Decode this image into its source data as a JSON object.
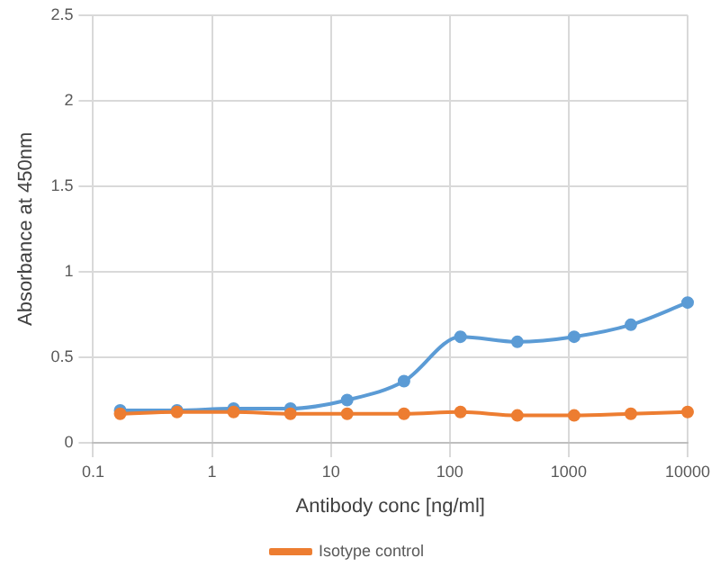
{
  "chart_data": {
    "type": "line",
    "xlabel": "Antibody conc [ng/ml]",
    "ylabel": "Absorbance at 450nm",
    "x": [
      0.169,
      0.508,
      1.52,
      4.57,
      13.7,
      41.2,
      123,
      370,
      1111,
      3333,
      10000
    ],
    "series": [
      {
        "color": "#5b9bd5",
        "values": [
          0.19,
          0.19,
          0.2,
          0.2,
          0.25,
          0.36,
          0.62,
          0.59,
          0.62,
          0.69,
          0.82
        ]
      },
      {
        "name": "Isotype control",
        "color": "#ed7d31",
        "values": [
          0.17,
          0.18,
          0.18,
          0.17,
          0.17,
          0.17,
          0.18,
          0.16,
          0.16,
          0.17,
          0.18
        ]
      }
    ],
    "log": "x",
    "xlim": [
      0.1,
      10000
    ],
    "xticks": [
      0.1,
      1,
      10,
      100,
      1000,
      10000
    ],
    "ylim": [
      0,
      2.5
    ],
    "yticks": [
      0,
      0.5,
      1,
      1.5,
      2,
      2.5
    ],
    "grid": true,
    "legend": "bottom",
    "marker": "circle",
    "line_style": "solid"
  }
}
